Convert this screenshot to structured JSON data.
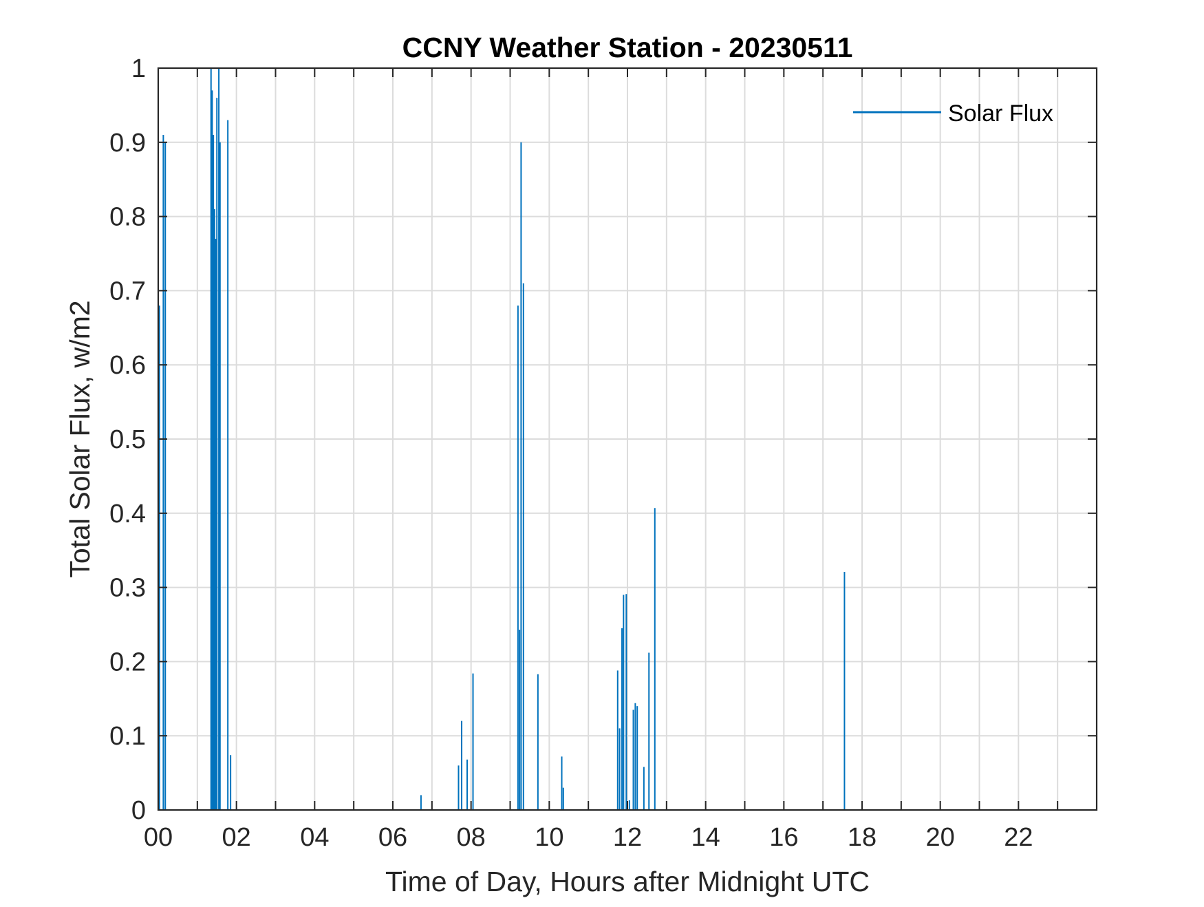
{
  "chart_data": {
    "type": "line",
    "title": "CCNY Weather Station - 20230511",
    "xlabel": "Time of Day, Hours after Midnight UTC",
    "ylabel": "Total Solar Flux, w/m2",
    "xlim": [
      0,
      24
    ],
    "ylim": [
      0,
      1
    ],
    "xticks": [
      0,
      2,
      4,
      6,
      8,
      10,
      12,
      14,
      16,
      18,
      20,
      22
    ],
    "xtick_labels": [
      "00",
      "02",
      "04",
      "06",
      "08",
      "10",
      "12",
      "14",
      "16",
      "18",
      "20",
      "22"
    ],
    "yticks": [
      0,
      0.1,
      0.2,
      0.3,
      0.4,
      0.5,
      0.6,
      0.7,
      0.8,
      0.9,
      1
    ],
    "ytick_labels": [
      "0",
      "0.1",
      "0.2",
      "0.3",
      "0.4",
      "0.5",
      "0.6",
      "0.7",
      "0.8",
      "0.9",
      "1"
    ],
    "grid": true,
    "legend_position": "top-right",
    "color": "#0072BD",
    "series": [
      {
        "name": "Solar Flux",
        "spikes": [
          {
            "x": 0.03,
            "y": 0.68
          },
          {
            "x": 0.13,
            "y": 0.91
          },
          {
            "x": 0.18,
            "y": 0.9
          },
          {
            "x": 1.35,
            "y": 1.0
          },
          {
            "x": 1.38,
            "y": 0.97
          },
          {
            "x": 1.41,
            "y": 0.91
          },
          {
            "x": 1.44,
            "y": 0.81
          },
          {
            "x": 1.47,
            "y": 0.77
          },
          {
            "x": 1.5,
            "y": 0.96
          },
          {
            "x": 1.55,
            "y": 1.0
          },
          {
            "x": 1.58,
            "y": 0.9
          },
          {
            "x": 1.78,
            "y": 0.93
          },
          {
            "x": 1.85,
            "y": 0.074
          },
          {
            "x": 6.72,
            "y": 0.02
          },
          {
            "x": 7.68,
            "y": 0.06
          },
          {
            "x": 7.76,
            "y": 0.12
          },
          {
            "x": 7.9,
            "y": 0.068
          },
          {
            "x": 8.05,
            "y": 0.184
          },
          {
            "x": 9.2,
            "y": 0.68
          },
          {
            "x": 9.24,
            "y": 0.243
          },
          {
            "x": 9.28,
            "y": 0.9
          },
          {
            "x": 9.34,
            "y": 0.71
          },
          {
            "x": 9.71,
            "y": 0.183
          },
          {
            "x": 10.32,
            "y": 0.072
          },
          {
            "x": 10.36,
            "y": 0.03
          },
          {
            "x": 11.75,
            "y": 0.188
          },
          {
            "x": 11.8,
            "y": 0.11
          },
          {
            "x": 11.86,
            "y": 0.245
          },
          {
            "x": 11.9,
            "y": 0.29
          },
          {
            "x": 11.97,
            "y": 0.291
          },
          {
            "x": 12.05,
            "y": 0.013
          },
          {
            "x": 12.15,
            "y": 0.135
          },
          {
            "x": 12.2,
            "y": 0.144
          },
          {
            "x": 12.25,
            "y": 0.14
          },
          {
            "x": 12.42,
            "y": 0.058
          },
          {
            "x": 12.55,
            "y": 0.212
          },
          {
            "x": 12.7,
            "y": 0.407
          },
          {
            "x": 17.55,
            "y": 0.321
          }
        ]
      }
    ]
  }
}
